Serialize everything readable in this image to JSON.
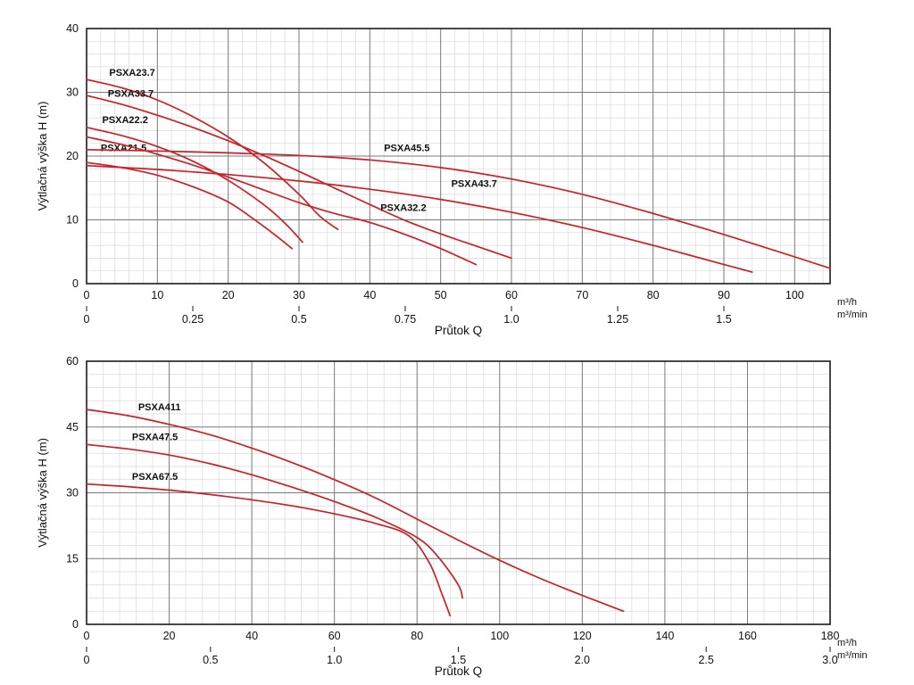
{
  "figure": {
    "background": "#ffffff",
    "curve_color": "#cc2027",
    "grid_minor_color": "#d9d9d9",
    "grid_major_color": "#7a7a7a",
    "axis_color": "#1a1a1a",
    "text_color": "#111111"
  },
  "chart_data": [
    {
      "type": "line",
      "title": "",
      "ylabel": "Výtlačná výška H (m)",
      "xlabel": "Průtok Q",
      "x_unit_primary": "m³/h",
      "x_unit_secondary": "m³/min",
      "x_min": 0,
      "x_plot_max": 105,
      "x_major": 10,
      "x_minor": 2,
      "y_min": 0,
      "y_plot_max": 40,
      "y_major": 10,
      "y_minor": 2,
      "x_ticks": [
        0,
        10,
        20,
        30,
        40,
        50,
        60,
        70,
        80,
        90,
        100
      ],
      "y_ticks": [
        0,
        10,
        20,
        30,
        40
      ],
      "x2_scale": 60,
      "x2_tick_values": [
        0,
        0.25,
        0.5,
        0.75,
        1.0,
        1.25,
        1.5
      ],
      "x2_tick_labels": [
        "0",
        "0.25",
        "0.5",
        "0.75",
        "1.0",
        "1.25",
        "1.5"
      ],
      "series": [
        {
          "label": "PSXA23.7",
          "label_at": [
            3.2,
            32.6
          ],
          "x": [
            0,
            5,
            10,
            15,
            20,
            25,
            30,
            33,
            35.5
          ],
          "y": [
            32,
            30.7,
            28.8,
            26.2,
            23,
            19,
            14,
            10.5,
            8.5
          ]
        },
        {
          "label": "PSXA33.7",
          "label_at": [
            3,
            29.3
          ],
          "x": [
            0,
            5,
            10,
            15,
            20,
            25,
            30,
            35,
            40,
            45,
            50,
            55,
            60
          ],
          "y": [
            29.5,
            28.1,
            26.4,
            24.5,
            22.4,
            20.1,
            17.6,
            15,
            12.4,
            9.9,
            7.8,
            5.9,
            4
          ]
        },
        {
          "label": "PSXA22.2",
          "label_at": [
            2.2,
            25.2
          ],
          "x": [
            0,
            5,
            10,
            15,
            20,
            25,
            28,
            30.5
          ],
          "y": [
            24.5,
            23.2,
            21.5,
            19.2,
            16.2,
            12.4,
            9.5,
            6.5
          ]
        },
        {
          "label": "PSXA21.5",
          "label_at": [
            2,
            20.8
          ],
          "x": [
            0,
            5,
            10,
            15,
            20,
            24,
            27,
            29
          ],
          "y": [
            19,
            18.2,
            17,
            15.2,
            12.8,
            9.8,
            7.3,
            5.5
          ]
        },
        {
          "label": "PSXA32.2",
          "label_at": [
            41.5,
            11.4
          ],
          "x": [
            0,
            5,
            10,
            15,
            20,
            25,
            30,
            35,
            40,
            45,
            50,
            55
          ],
          "y": [
            23,
            21.8,
            20.3,
            18.6,
            16.7,
            14.7,
            12.7,
            11,
            9.6,
            7.7,
            5.5,
            3
          ]
        },
        {
          "label": "PSXA43.7",
          "label_at": [
            51.5,
            15.2
          ],
          "x": [
            0,
            10,
            20,
            30,
            40,
            50,
            60,
            70,
            80,
            90,
            94
          ],
          "y": [
            18.5,
            17.9,
            17.1,
            16.1,
            14.8,
            13.2,
            11.2,
            8.8,
            6,
            3,
            1.8
          ]
        },
        {
          "label": "PSXA45.5",
          "label_at": [
            42,
            20.8
          ],
          "x": [
            0,
            10,
            20,
            30,
            40,
            50,
            60,
            70,
            80,
            90,
            100,
            105
          ],
          "y": [
            21,
            20.8,
            20.5,
            20.1,
            19.4,
            18.2,
            16.4,
            14,
            11,
            7.7,
            4.2,
            2.4
          ]
        }
      ]
    },
    {
      "type": "line",
      "title": "",
      "ylabel": "Výtlačná výška H (m)",
      "xlabel": "Průtok Q",
      "x_unit_primary": "m³/h",
      "x_unit_secondary": "m³/min",
      "x_min": 0,
      "x_plot_max": 180,
      "x_major": 20,
      "x_minor": 4,
      "y_min": 0,
      "y_plot_max": 60,
      "y_major": 15,
      "y_minor": 3,
      "x_ticks": [
        0,
        20,
        40,
        60,
        80,
        100,
        120,
        140,
        160,
        180
      ],
      "y_ticks": [
        0,
        15,
        30,
        45,
        60
      ],
      "x2_scale": 60,
      "x2_tick_values": [
        0,
        0.5,
        1.0,
        1.5,
        2.0,
        2.5,
        3.0
      ],
      "x2_tick_labels": [
        "0",
        "0.5",
        "1.0",
        "1.5",
        "2.0",
        "2.5",
        "3.0"
      ],
      "series": [
        {
          "label": "PSXA411",
          "label_at": [
            12.5,
            48.8
          ],
          "x": [
            0,
            10,
            20,
            30,
            40,
            50,
            60,
            70,
            80,
            90,
            100,
            110,
            120,
            130
          ],
          "y": [
            49,
            47.6,
            45.6,
            43.2,
            40.2,
            36.8,
            33,
            28.8,
            24,
            19.2,
            14.6,
            10.4,
            6.6,
            3
          ]
        },
        {
          "label": "PSXA47.5",
          "label_at": [
            11,
            42
          ],
          "x": [
            0,
            10,
            20,
            30,
            40,
            50,
            60,
            70,
            80,
            85,
            90,
            91
          ],
          "y": [
            41,
            40,
            38.6,
            36.6,
            34.1,
            31.2,
            28,
            24.4,
            19.8,
            15.5,
            9,
            6
          ]
        },
        {
          "label": "PSXA67.5",
          "label_at": [
            11,
            33
          ],
          "x": [
            0,
            10,
            20,
            30,
            40,
            50,
            60,
            70,
            78,
            83,
            86,
            88
          ],
          "y": [
            32,
            31.4,
            30.6,
            29.6,
            28.4,
            27,
            25.2,
            23,
            20.2,
            14,
            7,
            2
          ]
        }
      ]
    }
  ]
}
